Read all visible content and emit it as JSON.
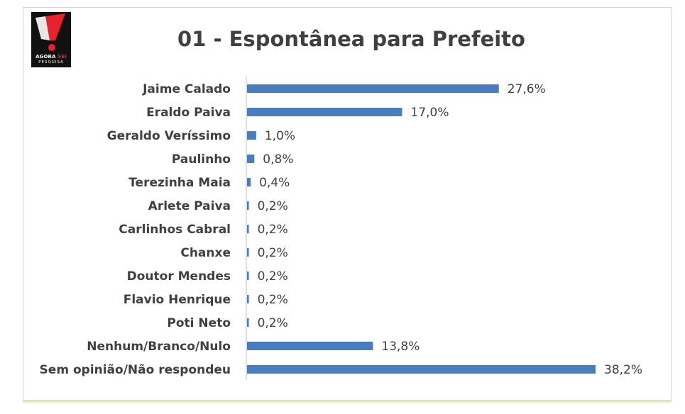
{
  "logo": {
    "text_agora": "AGORA",
    "text_sei": "SEI",
    "text_sub": "PESQUISA"
  },
  "chart_data": {
    "type": "bar",
    "orientation": "horizontal",
    "title": "01 - Espontânea para Prefeito",
    "categories": [
      "Jaime Calado",
      "Eraldo Paiva",
      "Geraldo Veríssimo",
      "Paulinho",
      "Terezinha Maia",
      "Arlete Paiva",
      "Carlinhos Cabral",
      "Chanxe",
      "Doutor Mendes",
      "Flavio Henrique",
      "Poti Neto",
      "Nenhum/Branco/Nulo",
      "Sem opinião/Não respondeu"
    ],
    "values": [
      27.6,
      17.0,
      1.0,
      0.8,
      0.4,
      0.2,
      0.2,
      0.2,
      0.2,
      0.2,
      0.2,
      13.8,
      38.2
    ],
    "value_labels": [
      "27,6%",
      "17,0%",
      "1,0%",
      "0,8%",
      "0,4%",
      "0,2%",
      "0,2%",
      "0,2%",
      "0,2%",
      "0,2%",
      "0,2%",
      "13,8%",
      "38,2%"
    ],
    "xlim": [
      0,
      38.2
    ],
    "bar_color": "#4a7cc0",
    "grid": false,
    "legend": "none"
  }
}
